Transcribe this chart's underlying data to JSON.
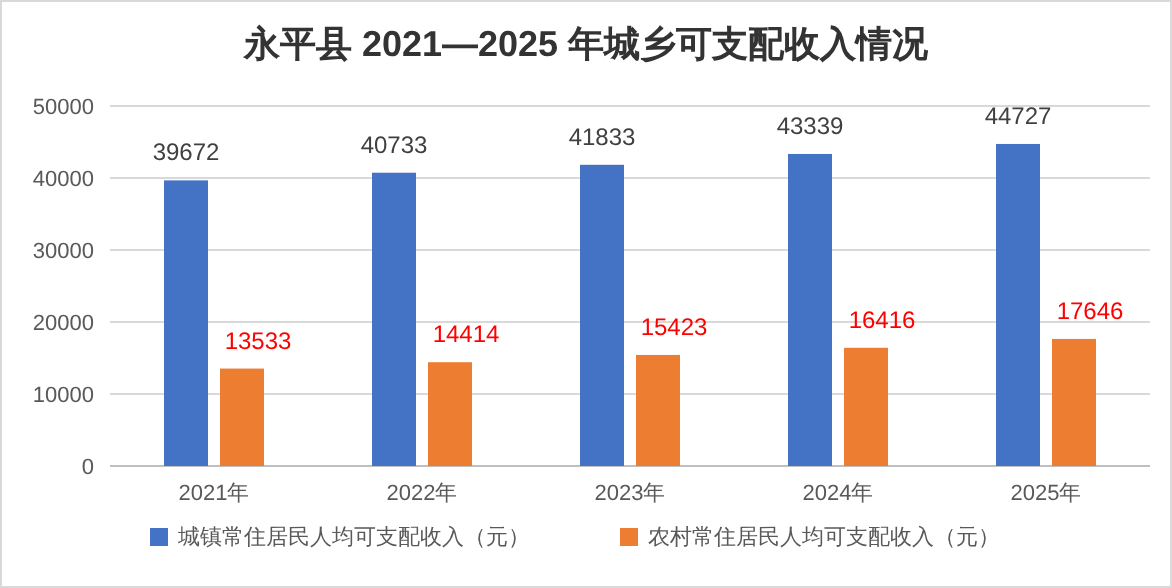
{
  "chart_data": {
    "type": "bar",
    "title": "永平县 2021—2025 年城乡可支配收入情况",
    "categories": [
      "2021年",
      "2022年",
      "2023年",
      "2024年",
      "2025年"
    ],
    "series": [
      {
        "name": "城镇常住居民人均可支配收入（元）",
        "color": "#4472c4",
        "values": [
          39672,
          40733,
          41833,
          43339,
          44727
        ]
      },
      {
        "name": "农村常住居民人均可支配收入（元）",
        "color": "#ed7d31",
        "values": [
          13533,
          14414,
          15423,
          16416,
          17646
        ]
      }
    ],
    "ylim": [
      0,
      50000
    ],
    "yticks": [
      0,
      10000,
      20000,
      30000,
      40000,
      50000
    ],
    "grid": "y",
    "legend": "bottom",
    "data_labels": true
  }
}
